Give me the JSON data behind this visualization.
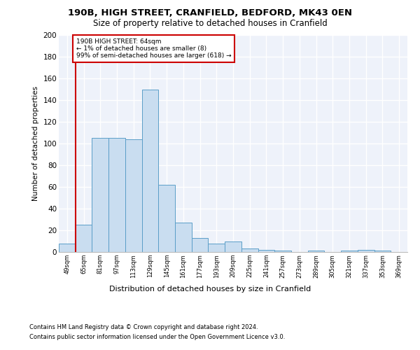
{
  "title1": "190B, HIGH STREET, CRANFIELD, BEDFORD, MK43 0EN",
  "title2": "Size of property relative to detached houses in Cranfield",
  "xlabel": "Distribution of detached houses by size in Cranfield",
  "ylabel": "Number of detached properties",
  "footnote1": "Contains HM Land Registry data © Crown copyright and database right 2024.",
  "footnote2": "Contains public sector information licensed under the Open Government Licence v3.0.",
  "annotation_line1": "190B HIGH STREET: 64sqm",
  "annotation_line2": "← 1% of detached houses are smaller (8)",
  "annotation_line3": "99% of semi-detached houses are larger (618) →",
  "bar_color": "#c9ddf0",
  "bar_edge_color": "#5a9ec8",
  "property_line_color": "#cc0000",
  "annotation_box_color": "#cc0000",
  "background_color": "#eef2fa",
  "fig_background": "#ffffff",
  "categories": [
    "49sqm",
    "65sqm",
    "81sqm",
    "97sqm",
    "113sqm",
    "129sqm",
    "145sqm",
    "161sqm",
    "177sqm",
    "193sqm",
    "209sqm",
    "225sqm",
    "241sqm",
    "257sqm",
    "273sqm",
    "289sqm",
    "305sqm",
    "321sqm",
    "337sqm",
    "353sqm",
    "369sqm"
  ],
  "values": [
    8,
    25,
    105,
    105,
    104,
    150,
    62,
    27,
    13,
    8,
    10,
    3,
    2,
    1,
    0,
    1,
    0,
    1,
    2,
    1,
    0
  ],
  "ylim": [
    0,
    200
  ],
  "yticks": [
    0,
    20,
    40,
    60,
    80,
    100,
    120,
    140,
    160,
    180,
    200
  ]
}
